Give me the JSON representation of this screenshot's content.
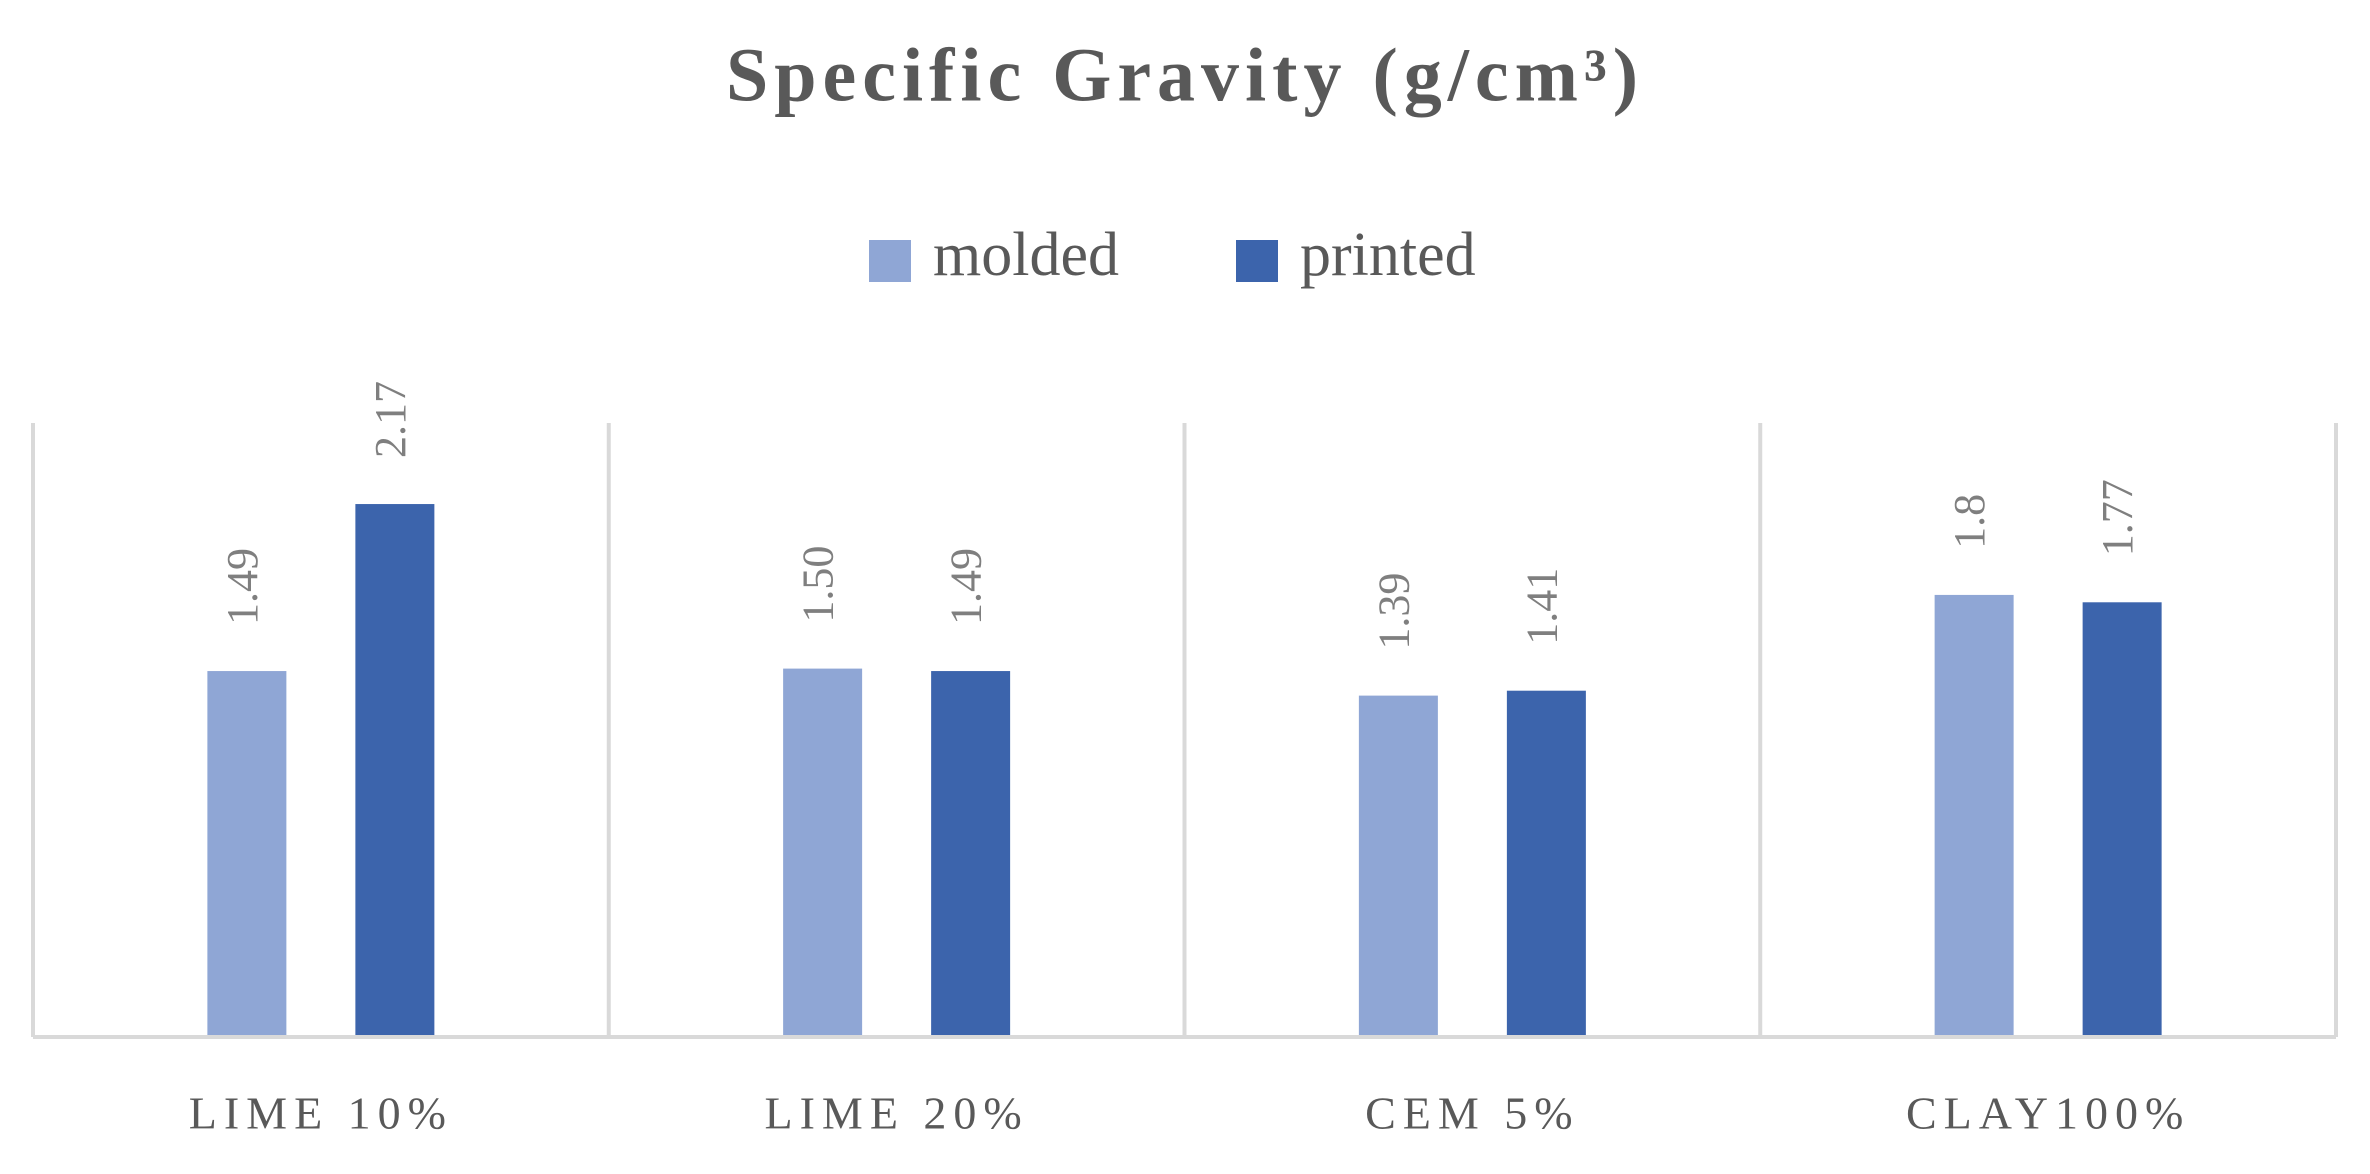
{
  "chart_data": {
    "type": "bar",
    "title": "Specific Gravity (g/cm³)",
    "categories": [
      "LIME 10%",
      "LIME 20%",
      "CEM 5%",
      "CLAY100%"
    ],
    "series": [
      {
        "name": "molded",
        "color": "#8fa6d5",
        "values": [
          1.49,
          1.5,
          1.39,
          1.8
        ],
        "value_labels": [
          "1.49",
          "1.50",
          "1.39",
          "1.8"
        ]
      },
      {
        "name": "printed",
        "color": "#3c64ac",
        "values": [
          2.17,
          1.49,
          1.41,
          1.77
        ]
      }
    ],
    "ylim": [
      0,
      2.5
    ],
    "legend": "top"
  }
}
